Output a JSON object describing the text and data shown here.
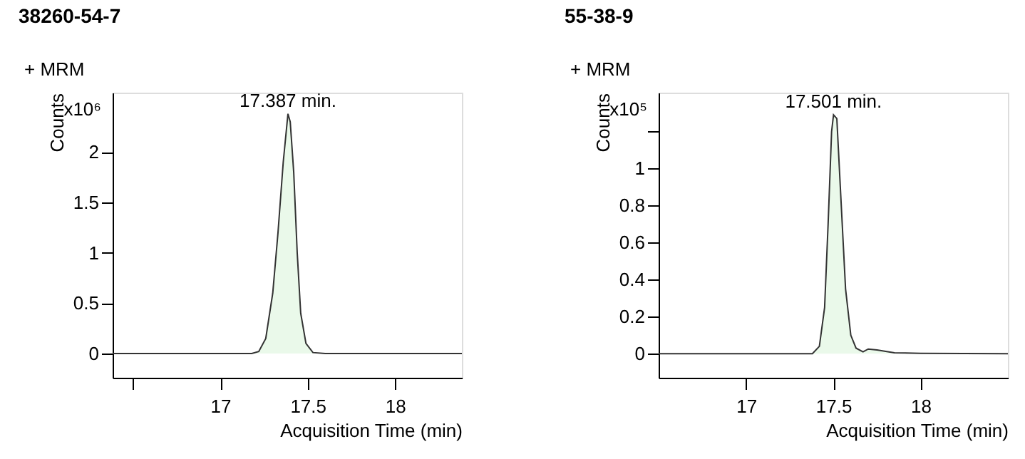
{
  "chart_data": [
    {
      "type": "area",
      "title": "38260-54-7",
      "xlabel": "Acquisition Time (min)",
      "ylabel": "Counts",
      "annotations": [
        "+ MRM",
        "x10⁶",
        {
          "text": "17.387 min.",
          "x": 17.387,
          "y": 2.38
        }
      ],
      "x": [
        16.384,
        17.18,
        17.22,
        17.26,
        17.3,
        17.33,
        17.36,
        17.387,
        17.4,
        17.42,
        17.44,
        17.46,
        17.49,
        17.53,
        17.6,
        18.382
      ],
      "series": [
        {
          "color": "#e1f7e1",
          "values": [
            0,
            0,
            0.02,
            0.15,
            0.6,
            1.2,
            1.9,
            2.38,
            2.3,
            1.8,
            1.0,
            0.4,
            0.1,
            0.01,
            0,
            0
          ]
        }
      ],
      "xlim": [
        16.384,
        18.382
      ],
      "ylim": [
        -0.24,
        2.59
      ],
      "xticks": [
        {
          "value": 16.5,
          "label": null
        },
        17,
        17.5,
        18
      ],
      "yticks": [
        0,
        0.5,
        1,
        1.5,
        2
      ],
      "grid": false
    },
    {
      "type": "area",
      "title": "55-38-9",
      "xlabel": "Acquisition Time (min)",
      "ylabel": "Counts",
      "annotations": [
        "+ MRM",
        "x10⁵",
        {
          "text": "17.501 min.",
          "x": 17.501,
          "y": 1.29
        }
      ],
      "x": [
        16.499,
        17.38,
        17.42,
        17.45,
        17.47,
        17.49,
        17.501,
        17.52,
        17.54,
        17.57,
        17.6,
        17.63,
        17.67,
        17.7,
        17.75,
        17.85,
        18.0,
        18.5
      ],
      "series": [
        {
          "color": "#e1f7e1",
          "values": [
            0,
            0,
            0.04,
            0.25,
            0.7,
            1.2,
            1.29,
            1.27,
            0.9,
            0.35,
            0.1,
            0.03,
            0.01,
            0.025,
            0.02,
            0.005,
            0.002,
            0
          ]
        }
      ],
      "xlim": [
        16.499,
        18.5
      ],
      "ylim": [
        -0.13,
        1.41
      ],
      "xticks": [
        17,
        17.5,
        18
      ],
      "yticks": [
        0,
        0.2,
        0.4,
        0.6,
        0.8,
        1,
        {
          "value": 1.2,
          "label": null
        }
      ],
      "grid": false
    }
  ]
}
